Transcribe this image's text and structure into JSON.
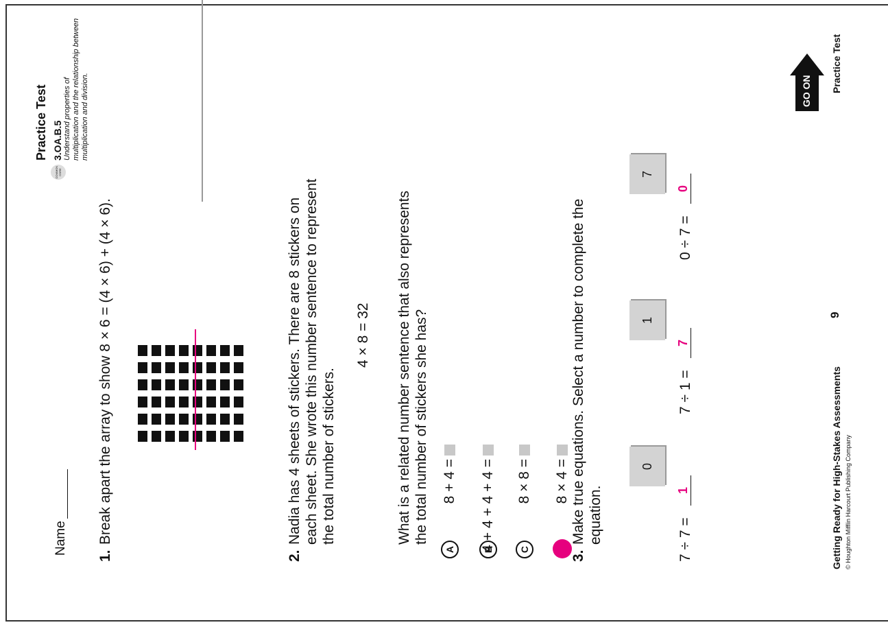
{
  "header": {
    "title": "Practice Test",
    "standard": "3.OA.B.5",
    "description_lines": [
      "Understand properties of",
      "multiplication and the relationship between",
      "multiplication and division."
    ],
    "badge": "COMMON CORE"
  },
  "name_label": "Name",
  "questions": [
    {
      "number": "1.",
      "lines": [
        "Break apart the array to show 8 × 6 = (4 × 6) + (4 × 6)."
      ]
    },
    {
      "number": "2.",
      "lines": [
        "Nadia has 4 sheets of stickers. There are 8 stickers on",
        "each sheet. She wrote this number sentence to represent",
        "the total number of stickers."
      ],
      "sentence": "4 × 8 = 32",
      "prompt_lines": [
        "What is a related number sentence that also represents",
        "the total number of stickers she has?"
      ],
      "options": [
        {
          "letter": "A",
          "text": "8 + 4 ="
        },
        {
          "letter": "B",
          "text": "4 + 4 + 4 + 4 ="
        },
        {
          "letter": "C",
          "text": "8 × 8 ="
        },
        {
          "text": "8 × 4 ="
        }
      ]
    },
    {
      "number": "3.",
      "lines": [
        "Make true equations. Select a number to complete the",
        "equation."
      ],
      "tiles": [
        "0",
        "1",
        "7"
      ],
      "equations": [
        {
          "left": "7 ÷ 7 =",
          "answer": "1"
        },
        {
          "left": "7 ÷ 1 =",
          "answer": "7"
        },
        {
          "left": "0 ÷ 7 =",
          "answer": "0"
        }
      ]
    }
  ],
  "go_on": "GO ON",
  "footer": {
    "title": "Getting Ready for High-Stakes Assessments",
    "copyright": "© Houghton Mifflin Harcourt Publishing Company",
    "page": "9",
    "section": "Practice Test"
  }
}
